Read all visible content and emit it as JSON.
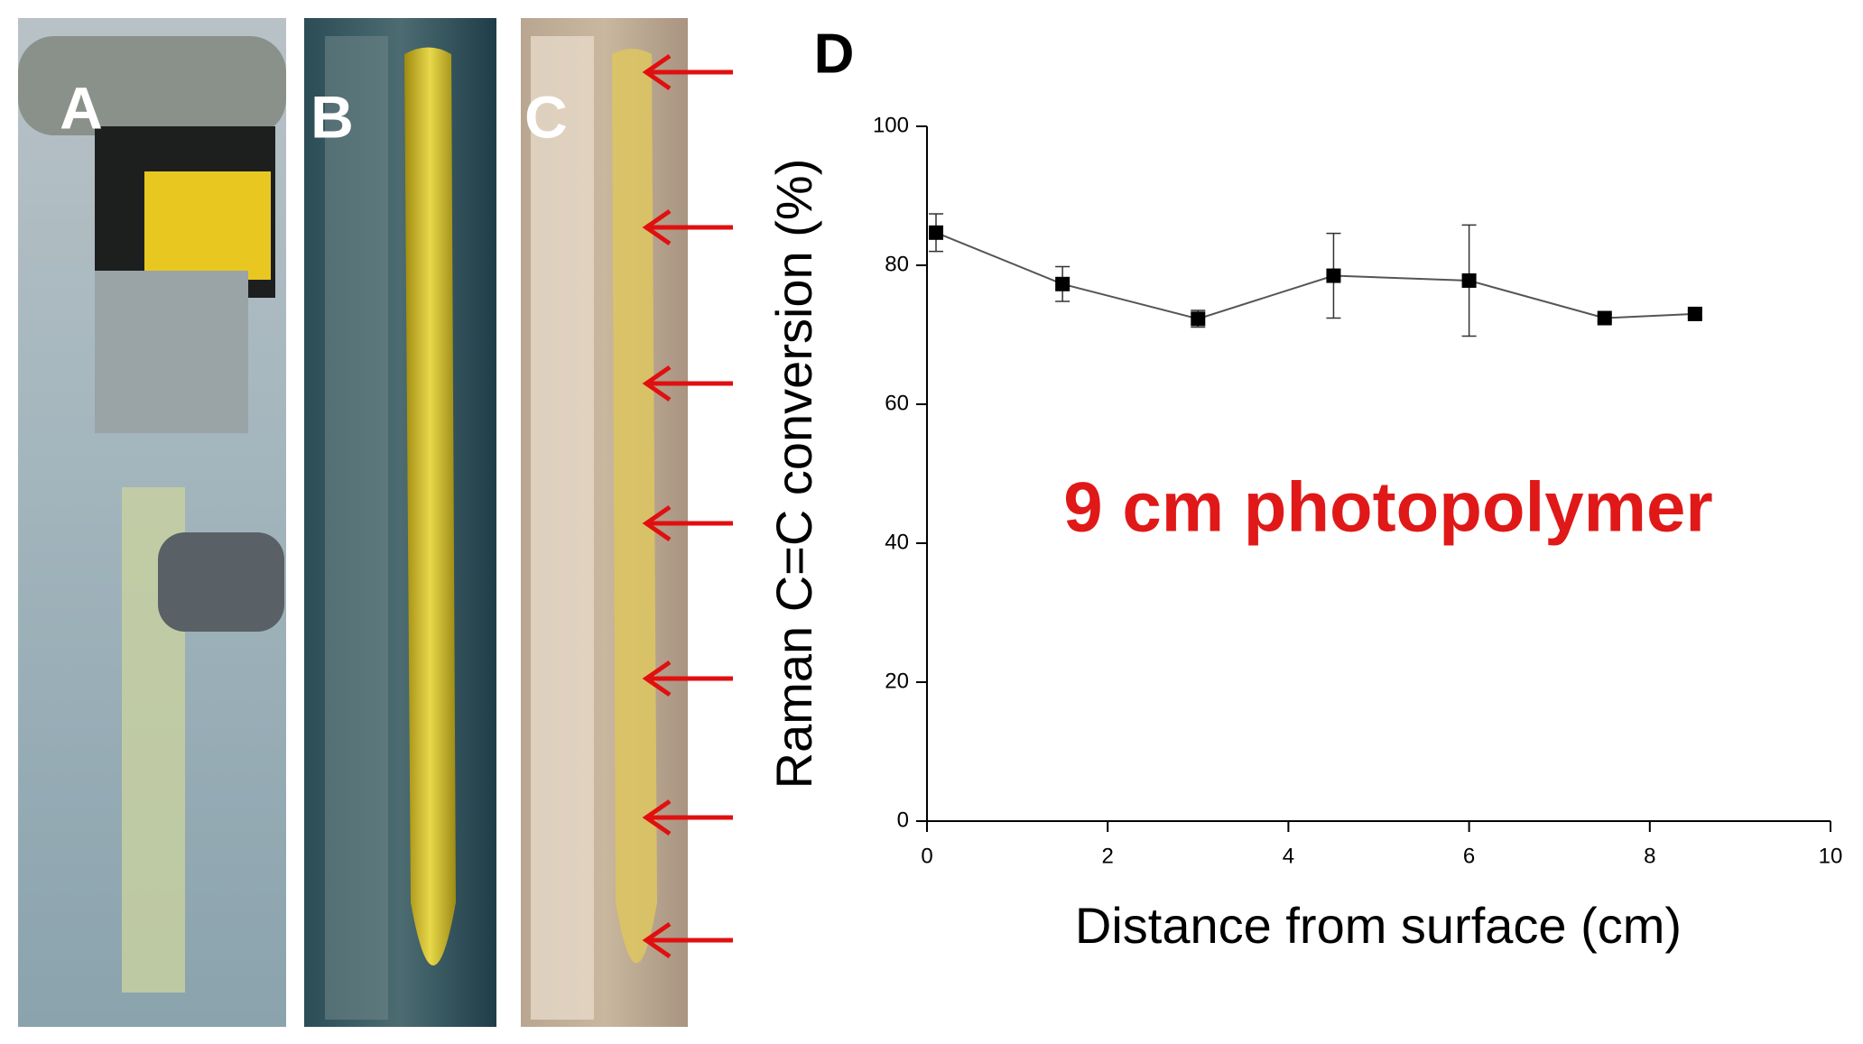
{
  "chart_data": {
    "type": "line",
    "panel_labels": [
      "A",
      "B",
      "C",
      "D"
    ],
    "annotation": "9 cm photopolymer",
    "xlabel": "Distance from surface (cm)",
    "ylabel": "Raman C=C conversion (%)",
    "x": [
      0.1,
      1.5,
      3,
      4.5,
      6,
      7.5,
      8.5
    ],
    "values": [
      84.7,
      77.3,
      72.3,
      78.5,
      77.8,
      72.4,
      73.0
    ],
    "errors": [
      2.7,
      2.5,
      1.2,
      6.1,
      8.0,
      0.5,
      0.5
    ],
    "color": "#000000",
    "xlim": [
      0,
      10
    ],
    "xticks": [
      0,
      2,
      4,
      6,
      8,
      10
    ],
    "ylim": [
      0,
      100
    ],
    "yticks": [
      0,
      20,
      40,
      60,
      80,
      100
    ]
  }
}
